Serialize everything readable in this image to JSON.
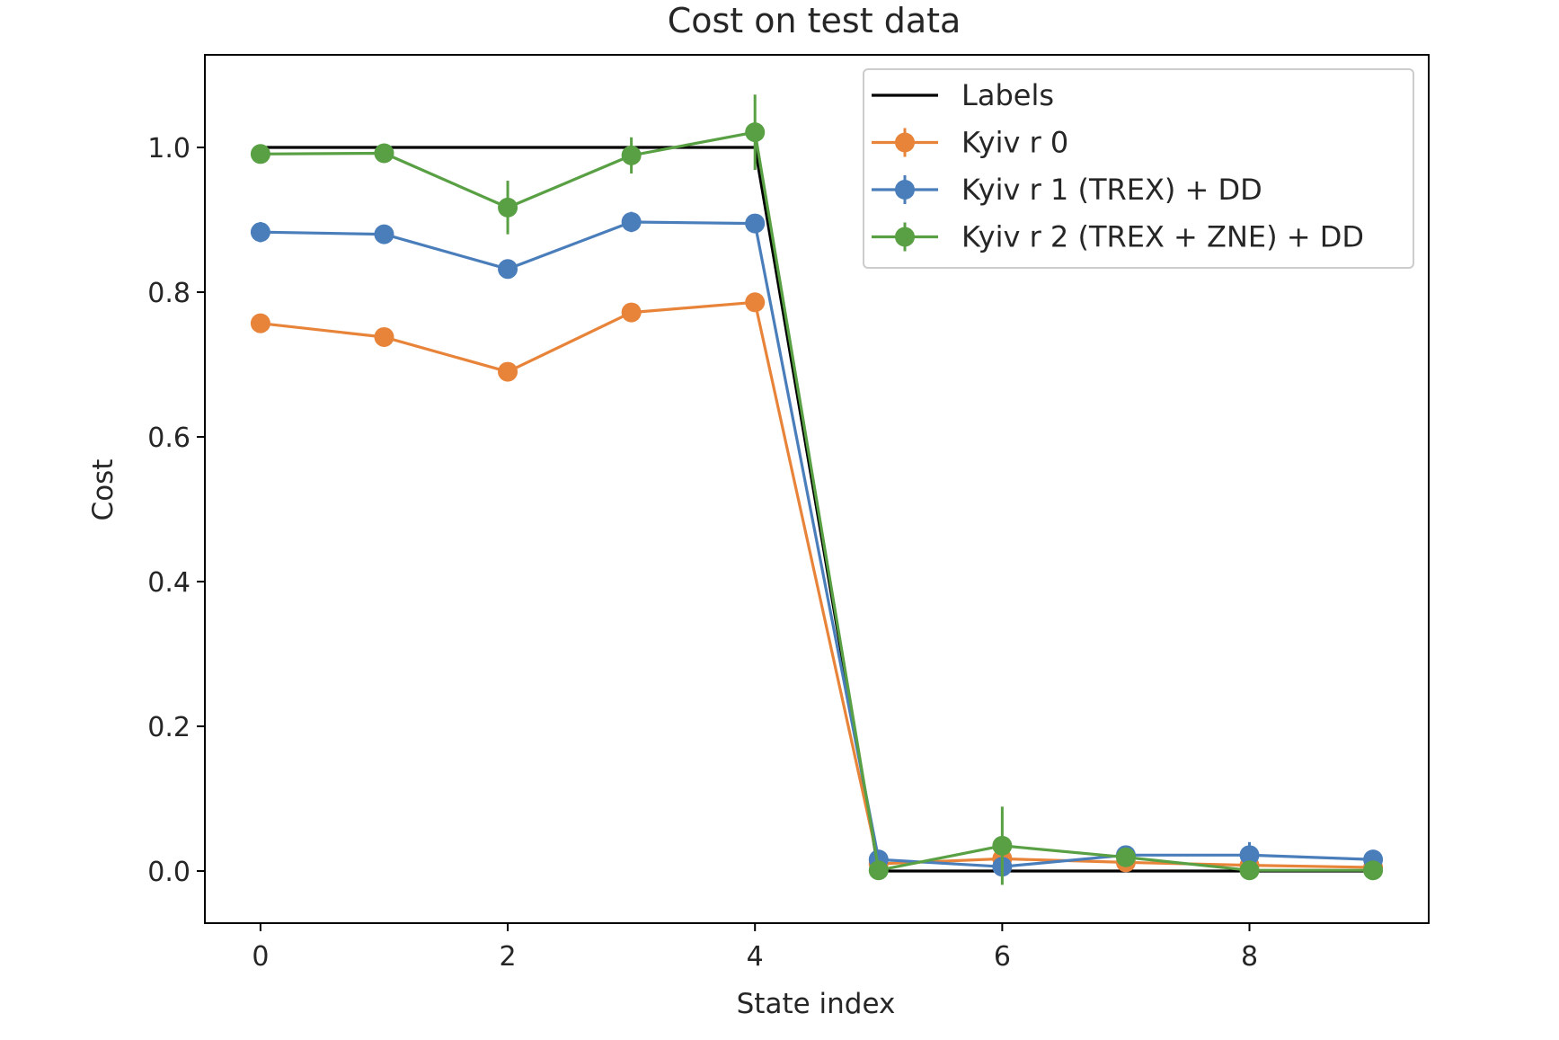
{
  "chart_data": {
    "type": "line",
    "title": "Cost on test data",
    "xlabel": "State index",
    "ylabel": "Cost",
    "xlim": [
      -0.45,
      9.45
    ],
    "ylim": [
      -0.072,
      1.128
    ],
    "xticks": [
      0,
      2,
      4,
      6,
      8
    ],
    "xtick_labels": [
      "0",
      "2",
      "4",
      "6",
      "8"
    ],
    "yticks": [
      0.0,
      0.2,
      0.4,
      0.6,
      0.8,
      1.0
    ],
    "ytick_labels": [
      "0.0",
      "0.2",
      "0.4",
      "0.6",
      "0.8",
      "1.0"
    ],
    "grid": false,
    "legend_position": "top-right",
    "x": [
      0,
      1,
      2,
      3,
      4,
      5,
      6,
      7,
      8,
      9
    ],
    "series": [
      {
        "name": "Labels",
        "color": "#000000",
        "markers": false,
        "values": [
          1,
          1,
          1,
          1,
          1,
          0,
          0,
          0,
          0,
          0
        ]
      },
      {
        "name": "Kyiv r 0",
        "color": "#e8843a",
        "markers": true,
        "values": [
          0.757,
          0.738,
          0.69,
          0.772,
          0.786,
          0.01,
          0.017,
          0.012,
          0.008,
          0.005
        ],
        "errors": [
          0.006,
          0.005,
          0.006,
          0.006,
          0.005,
          0.004,
          0.004,
          0.004,
          0.004,
          0.004
        ]
      },
      {
        "name": "Kyiv r 1 (TREX) + DD",
        "color": "#4a7ebb",
        "markers": true,
        "values": [
          0.883,
          0.88,
          0.832,
          0.897,
          0.895,
          0.016,
          0.006,
          0.022,
          0.022,
          0.016
        ],
        "errors": [
          0.014,
          0.01,
          0.012,
          0.014,
          0.012,
          0.006,
          0.01,
          0.006,
          0.018,
          0.008
        ]
      },
      {
        "name": "Kyiv r 2 (TREX + ZNE) + DD",
        "color": "#58a043",
        "markers": true,
        "values": [
          0.991,
          0.992,
          0.917,
          0.989,
          1.021,
          0.001,
          0.035,
          0.019,
          0.001,
          0.001
        ],
        "errors": [
          0.01,
          0.008,
          0.037,
          0.025,
          0.052,
          0.004,
          0.054,
          0.01,
          0.005,
          0.004
        ]
      }
    ]
  }
}
